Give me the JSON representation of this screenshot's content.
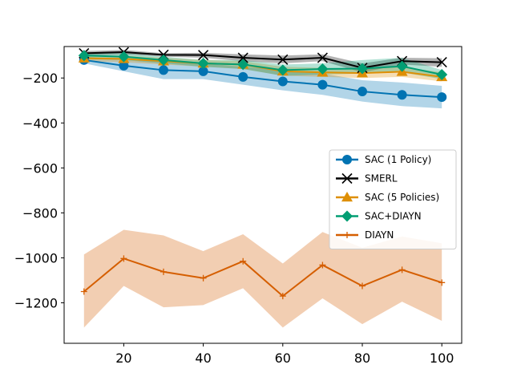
{
  "chart_data": {
    "type": "line",
    "title": "",
    "xlabel": "",
    "ylabel": "",
    "xlim": [
      5,
      105
    ],
    "ylim": [
      -1380,
      -60
    ],
    "x_ticks": [
      20,
      40,
      60,
      80,
      100
    ],
    "y_ticks": [
      -1200,
      -1000,
      -800,
      -600,
      -400,
      -200
    ],
    "grid": false,
    "legend_position": "center-right",
    "x": [
      10,
      20,
      30,
      40,
      50,
      60,
      70,
      80,
      90,
      100
    ],
    "series": [
      {
        "name": "SAC (1 Policy)",
        "color": "#0173b2",
        "marker": "circle",
        "values": [
          -120,
          -145,
          -165,
          -170,
          -195,
          -215,
          -230,
          -260,
          -275,
          -285
        ],
        "lower": [
          -135,
          -170,
          -205,
          -205,
          -230,
          -255,
          -275,
          -305,
          -325,
          -335
        ],
        "upper": [
          -105,
          -120,
          -125,
          -135,
          -150,
          -165,
          -180,
          -210,
          -220,
          -235
        ]
      },
      {
        "name": "SMERL",
        "color": "#000000",
        "marker": "x",
        "values": [
          -90,
          -85,
          -97,
          -98,
          -110,
          -118,
          -110,
          -155,
          -125,
          -130
        ],
        "lower": [
          -100,
          -95,
          -105,
          -110,
          -125,
          -135,
          -125,
          -175,
          -140,
          -150
        ],
        "upper": [
          -80,
          -75,
          -90,
          -88,
          -95,
          -100,
          -95,
          -135,
          -110,
          -112
        ]
      },
      {
        "name": "SAC (5 Policies)",
        "color": "#de8f05",
        "marker": "triangle",
        "values": [
          -112,
          -115,
          -125,
          -135,
          -140,
          -170,
          -175,
          -178,
          -172,
          -195
        ],
        "lower": [
          -125,
          -130,
          -140,
          -150,
          -160,
          -190,
          -195,
          -200,
          -195,
          -215
        ],
        "upper": [
          -100,
          -100,
          -110,
          -120,
          -125,
          -150,
          -155,
          -158,
          -150,
          -175
        ]
      },
      {
        "name": "SAC+DIAYN",
        "color": "#029e73",
        "marker": "diamond",
        "values": [
          -100,
          -105,
          -120,
          -135,
          -140,
          -165,
          -160,
          -158,
          -148,
          -185
        ],
        "lower": [
          -115,
          -120,
          -135,
          -150,
          -160,
          -190,
          -185,
          -180,
          -175,
          -205
        ],
        "upper": [
          -90,
          -90,
          -105,
          -120,
          -120,
          -140,
          -135,
          -120,
          -110,
          -165
        ]
      },
      {
        "name": "DIAYN",
        "color": "#d55e00",
        "marker": "plus",
        "values": [
          -1150,
          -1003,
          -1062,
          -1090,
          -1015,
          -1170,
          -1032,
          -1125,
          -1053,
          -1110
        ],
        "lower": [
          -1310,
          -1125,
          -1220,
          -1210,
          -1135,
          -1310,
          -1180,
          -1295,
          -1195,
          -1280
        ],
        "upper": [
          -985,
          -875,
          -900,
          -970,
          -895,
          -1025,
          -885,
          -955,
          -905,
          -935
        ]
      }
    ]
  }
}
